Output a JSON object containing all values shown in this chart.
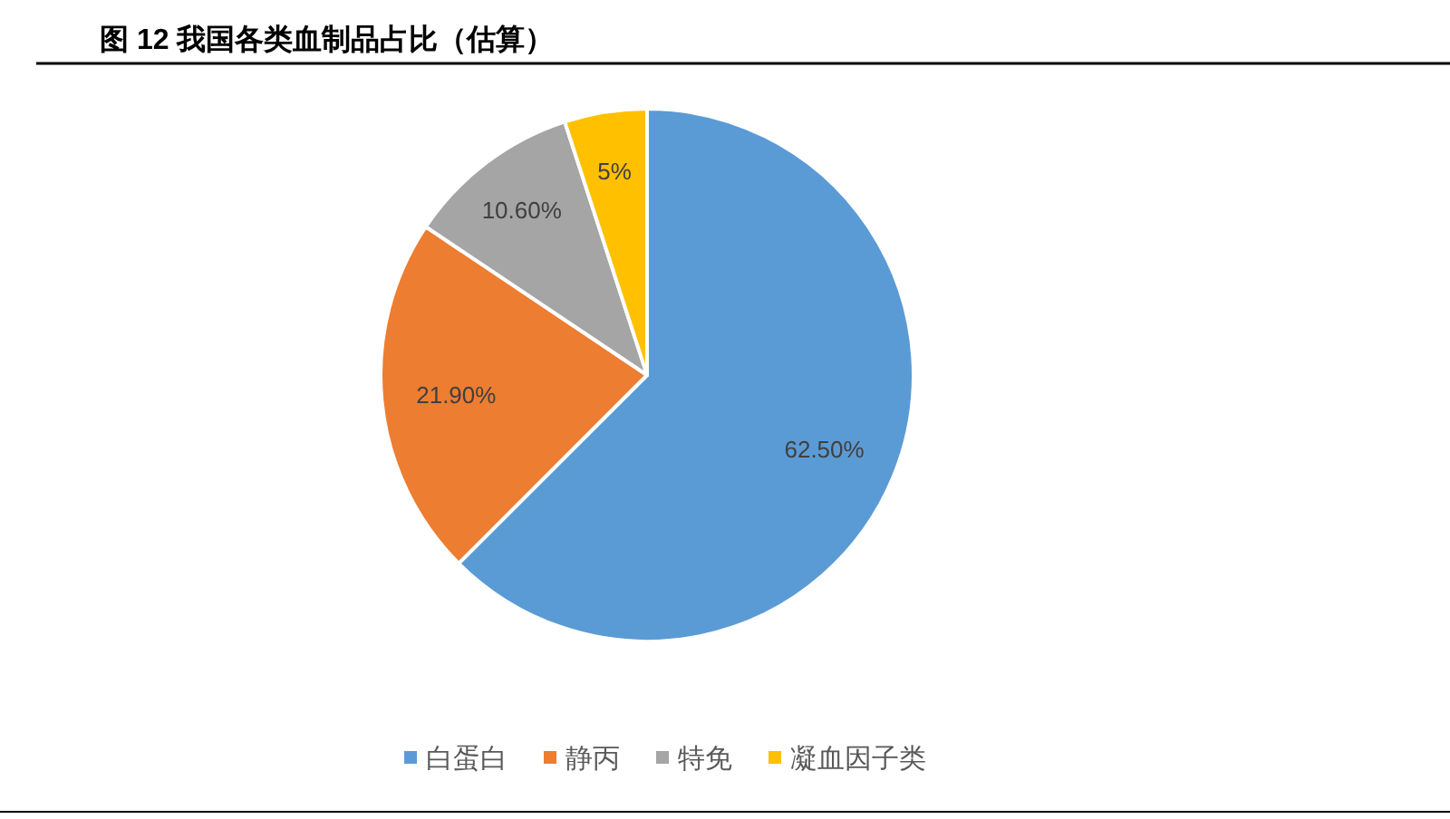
{
  "chart_data": {
    "type": "pie",
    "title": "图 12 我国各类血制品占比（估算）",
    "categories": [
      "白蛋白",
      "静丙",
      "特免",
      "凝血因子类"
    ],
    "values": [
      62.5,
      21.9,
      10.6,
      5
    ],
    "colors": [
      "#5b9bd5",
      "#ed7d31",
      "#a5a5a5",
      "#ffc000"
    ],
    "value_labels": [
      "62.50%",
      "21.90%",
      "10.60%",
      "5%"
    ],
    "legend": "bottom"
  }
}
